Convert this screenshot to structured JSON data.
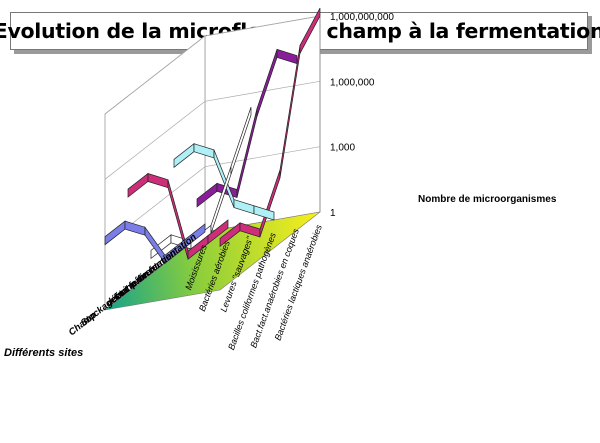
{
  "title": "Evolution de la microflore du champ à la fermentation",
  "chart_data": {
    "type": "3d-ribbon-line",
    "title": "Evolution de la microflore du champ à la fermentation",
    "xlabel": "Différents sites",
    "zlabel": "Nombre de microorganismes",
    "z_scale": "log",
    "z_ticks": [
      "1",
      "1,000",
      "1,000,000",
      "1,000,000,000"
    ],
    "sites": [
      "Champ",
      "Stockage",
      "farine",
      "état pâteux",
      "début fermentation",
      "fin fermentation"
    ],
    "series": [
      {
        "name": "Moisissures",
        "color": "#7b7ee8",
        "values": [
          1000,
          1000,
          100,
          1,
          1,
          1
        ]
      },
      {
        "name": "Bactéries aérobies",
        "color": "#cc2e7a",
        "values": [
          100000,
          100000,
          10000,
          1,
          1,
          1
        ]
      },
      {
        "name": "Levures \"sauvages\"",
        "color": "#ffffff",
        "values": [
          100,
          100,
          10,
          10,
          1000,
          100000
        ]
      },
      {
        "name": "Bacilles coliformes pathogènes",
        "color": "#aef0f5",
        "values": [
          1000000,
          1000000,
          100000,
          100,
          10,
          1
        ]
      },
      {
        "name": "Bact.fact.anaérobies en coques",
        "color": "#8a1e9a",
        "values": [
          10000,
          10000,
          1000,
          1000000,
          100000000,
          10000000
        ]
      },
      {
        "name": "Bactéries lactiques anaérobies",
        "color": "#cc2e7a",
        "values": [
          100,
          100,
          10,
          1000,
          100000000,
          1000000000
        ]
      }
    ]
  }
}
